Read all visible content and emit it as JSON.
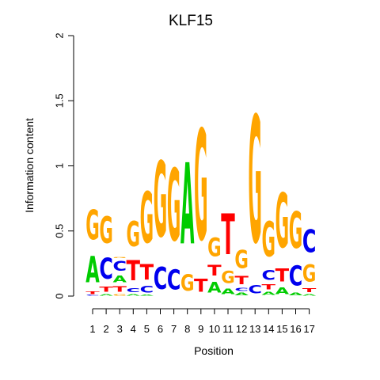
{
  "chart_data": {
    "type": "sequence-logo",
    "title": "KLF15",
    "xlabel": "Position",
    "ylabel": "Information content",
    "ylim": [
      0,
      2
    ],
    "yticks": [
      "0",
      "0.5",
      "1",
      "1.5",
      "2"
    ],
    "xticks": [
      "1",
      "2",
      "3",
      "4",
      "5",
      "6",
      "7",
      "8",
      "9",
      "10",
      "11",
      "12",
      "13",
      "14",
      "15",
      "16",
      "17"
    ],
    "colors": {
      "A": "#00cc00",
      "C": "#0000ee",
      "G": "#ffa500",
      "T": "#ff0000"
    },
    "positions": [
      {
        "pos": "1",
        "stack": [
          [
            "C",
            0.01
          ],
          [
            "T",
            0.03
          ],
          [
            "A",
            0.32
          ],
          [
            "G",
            0.37
          ]
        ]
      },
      {
        "pos": "2",
        "stack": [
          [
            "A",
            0.02
          ],
          [
            "T",
            0.06
          ],
          [
            "C",
            0.26
          ],
          [
            "G",
            0.33
          ]
        ]
      },
      {
        "pos": "3",
        "stack": [
          [
            "G",
            0.02
          ],
          [
            "T",
            0.07
          ],
          [
            "A",
            0.08
          ],
          [
            "C",
            0.12
          ],
          [
            "G",
            0.01
          ]
        ]
      },
      {
        "pos": "4",
        "stack": [
          [
            "A",
            0.02
          ],
          [
            "C",
            0.05
          ],
          [
            "T",
            0.25
          ],
          [
            "G",
            0.31
          ]
        ]
      },
      {
        "pos": "5",
        "stack": [
          [
            "A",
            0.01
          ],
          [
            "C",
            0.08
          ],
          [
            "T",
            0.19
          ],
          [
            "G",
            0.63
          ]
        ]
      },
      {
        "pos": "6",
        "stack": [
          [
            "C",
            0.27
          ],
          [
            "G",
            0.93
          ]
        ]
      },
      {
        "pos": "7",
        "stack": [
          [
            "C",
            0.25
          ],
          [
            "G",
            0.89
          ]
        ]
      },
      {
        "pos": "8",
        "stack": [
          [
            "G",
            0.2
          ],
          [
            "A",
            1.0
          ]
        ]
      },
      {
        "pos": "9",
        "stack": [
          [
            "T",
            0.16
          ],
          [
            "G",
            1.36
          ]
        ]
      },
      {
        "pos": "10",
        "stack": [
          [
            "A",
            0.13
          ],
          [
            "T",
            0.13
          ],
          [
            "G",
            0.23
          ]
        ]
      },
      {
        "pos": "11",
        "stack": [
          [
            "A",
            0.07
          ],
          [
            "G",
            0.15
          ],
          [
            "T",
            0.5
          ]
        ]
      },
      {
        "pos": "12",
        "stack": [
          [
            "A",
            0.03
          ],
          [
            "C",
            0.04
          ],
          [
            "T",
            0.1
          ],
          [
            "G",
            0.22
          ]
        ]
      },
      {
        "pos": "13",
        "stack": [
          [
            "C",
            0.1
          ],
          [
            "G",
            1.56
          ]
        ]
      },
      {
        "pos": "14",
        "stack": [
          [
            "A",
            0.04
          ],
          [
            "T",
            0.06
          ],
          [
            "C",
            0.12
          ],
          [
            "G",
            0.43
          ]
        ]
      },
      {
        "pos": "15",
        "stack": [
          [
            "A",
            0.08
          ],
          [
            "T",
            0.16
          ],
          [
            "G",
            0.67
          ]
        ]
      },
      {
        "pos": "16",
        "stack": [
          [
            "A",
            0.03
          ],
          [
            "C",
            0.25
          ],
          [
            "G",
            0.45
          ]
        ]
      },
      {
        "pos": "17",
        "stack": [
          [
            "A",
            0.02
          ],
          [
            "T",
            0.05
          ],
          [
            "G",
            0.21
          ],
          [
            "C",
            0.28
          ]
        ]
      }
    ]
  }
}
